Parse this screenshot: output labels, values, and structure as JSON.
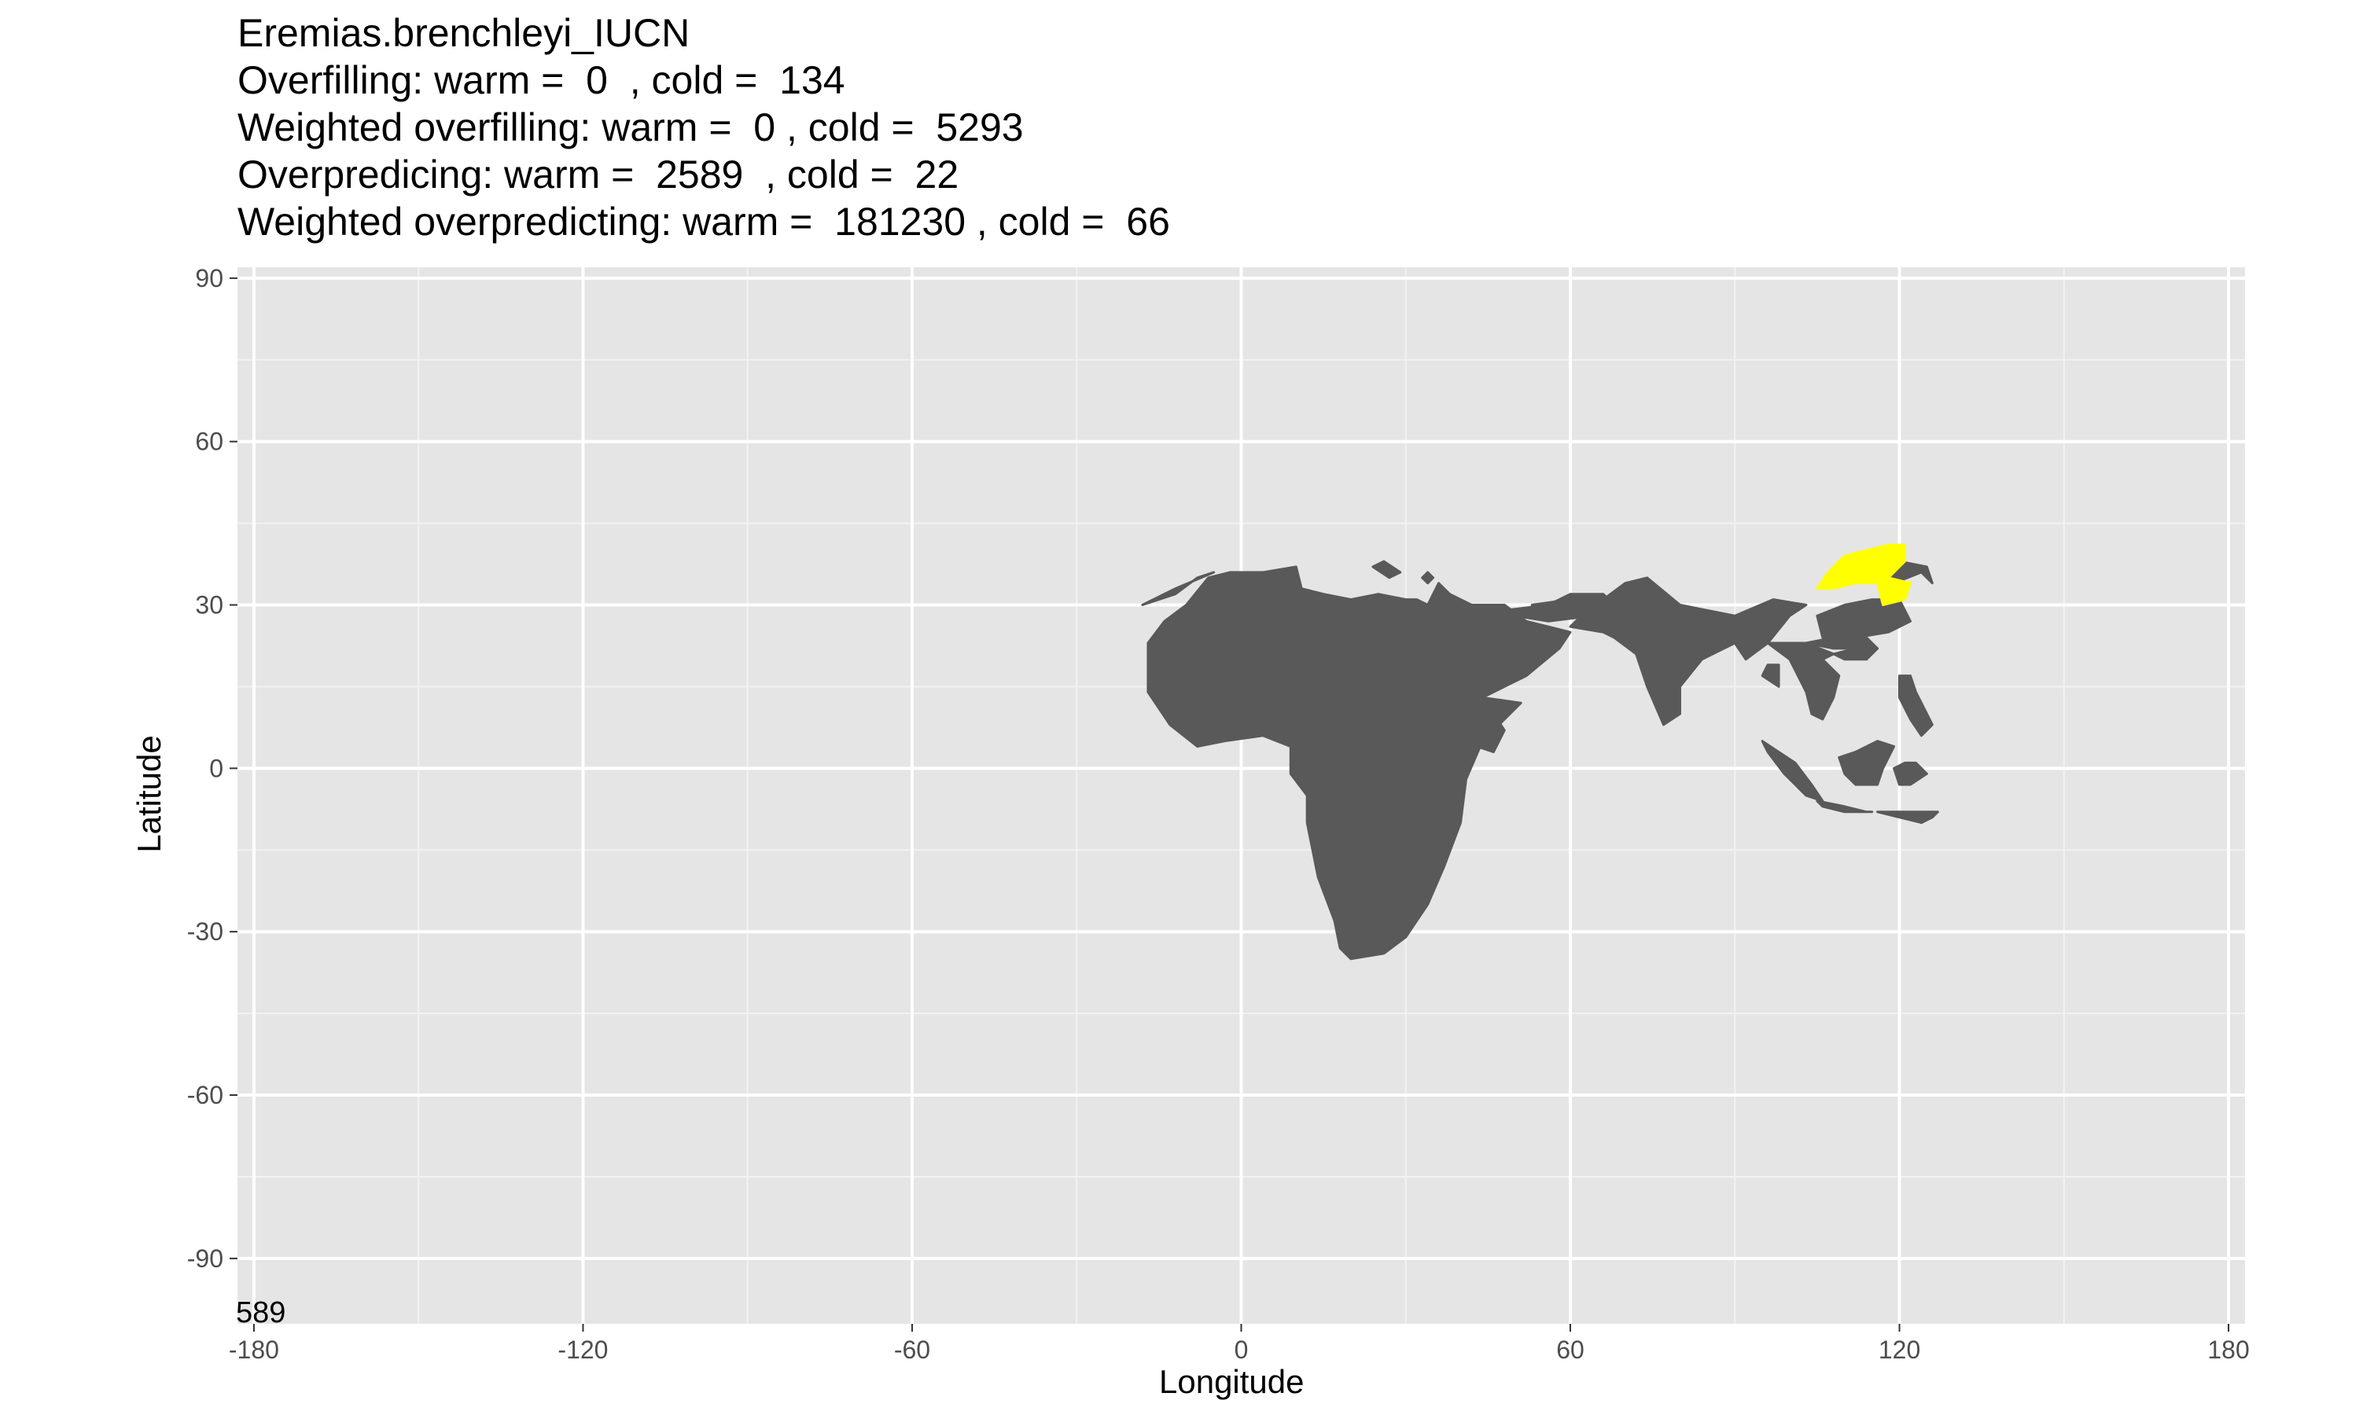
{
  "title_lines": [
    "Eremias.brenchleyi_IUCN",
    "Overfilling: warm =  0  , cold =  134",
    "Weighted overfilling: warm =  0 , cold =  5293",
    "Overpredicing: warm =  2589  , cold =  22",
    "Weighted overpredicting: warm =  181230 , cold =  66"
  ],
  "corner_label": "589",
  "chart_data": {
    "type": "map",
    "xlabel": "Longitude",
    "ylabel": "Latitude",
    "xlim": [
      -183,
      183
    ],
    "ylim": [
      -102,
      92
    ],
    "x_ticks": [
      -180,
      -120,
      -60,
      0,
      60,
      120,
      180
    ],
    "y_ticks": [
      90,
      60,
      30,
      0,
      -30,
      -60,
      -90
    ],
    "grid": true,
    "panel_color": "#e5e5e5",
    "layers": [
      {
        "role": "predicted range",
        "color": "#595959",
        "polygons": [
          [
            [
              -17,
              23
            ],
            [
              -14,
              27
            ],
            [
              -10,
              30
            ],
            [
              -6,
              35
            ],
            [
              -2,
              36
            ],
            [
              4,
              36
            ],
            [
              10,
              37
            ],
            [
              11,
              33
            ],
            [
              15,
              32
            ],
            [
              20,
              31
            ],
            [
              25,
              32
            ],
            [
              30,
              31
            ],
            [
              32,
              31
            ],
            [
              34,
              30
            ],
            [
              36,
              34
            ],
            [
              38,
              32
            ],
            [
              42,
              30
            ],
            [
              48,
              30
            ],
            [
              52,
              27
            ],
            [
              56,
              26
            ],
            [
              60,
              25
            ],
            [
              58,
              22
            ],
            [
              52,
              17
            ],
            [
              48,
              15
            ],
            [
              44,
              13
            ],
            [
              51,
              12
            ],
            [
              44,
              5
            ],
            [
              41,
              -2
            ],
            [
              40,
              -10
            ],
            [
              37,
              -18
            ],
            [
              34,
              -25
            ],
            [
              30,
              -31
            ],
            [
              26,
              -34
            ],
            [
              20,
              -35
            ],
            [
              18,
              -33
            ],
            [
              17,
              -28
            ],
            [
              14,
              -20
            ],
            [
              12,
              -10
            ],
            [
              12,
              -5
            ],
            [
              9,
              -1
            ],
            [
              9,
              4
            ],
            [
              4,
              6
            ],
            [
              -3,
              5
            ],
            [
              -8,
              4
            ],
            [
              -13,
              8
            ],
            [
              -17,
              14
            ],
            [
              -17,
              18
            ]
          ],
          [
            [
              -18,
              30
            ],
            [
              -12,
              32
            ],
            [
              -8,
              35
            ],
            [
              -5,
              36
            ],
            [
              -12,
              33
            ]
          ],
          [
            [
              60,
              26
            ],
            [
              66,
              25
            ],
            [
              68,
              24
            ],
            [
              72,
              21
            ],
            [
              74,
              15
            ],
            [
              77,
              8
            ],
            [
              80,
              10
            ],
            [
              80,
              15
            ],
            [
              84,
              20
            ],
            [
              88,
              22
            ],
            [
              90,
              23
            ],
            [
              92,
              20
            ],
            [
              96,
              23
            ],
            [
              100,
              28
            ],
            [
              103,
              30
            ],
            [
              97,
              31
            ],
            [
              90,
              28
            ],
            [
              80,
              30
            ],
            [
              74,
              35
            ],
            [
              70,
              34
            ],
            [
              66,
              31
            ],
            [
              62,
              28
            ]
          ],
          [
            [
              48,
              29
            ],
            [
              56,
              30
            ],
            [
              60,
              32
            ],
            [
              66,
              32
            ],
            [
              68,
              30
            ],
            [
              64,
              28
            ],
            [
              56,
              27
            ],
            [
              50,
              28
            ]
          ],
          [
            [
              53,
              30
            ],
            [
              60,
              31
            ],
            [
              65,
              31
            ],
            [
              62,
              29
            ],
            [
              56,
              29
            ]
          ],
          [
            [
              96,
              23
            ],
            [
              100,
              20
            ],
            [
              103,
              14
            ],
            [
              104,
              10
            ],
            [
              106,
              9
            ],
            [
              108,
              13
            ],
            [
              109,
              17
            ],
            [
              106,
              20
            ],
            [
              108,
              21
            ],
            [
              103,
              23
            ]
          ],
          [
            [
              108,
              21
            ],
            [
              112,
              22
            ],
            [
              116,
              22
            ],
            [
              114,
              20
            ],
            [
              110,
              20
            ]
          ],
          [
            [
              105,
              28
            ],
            [
              110,
              30
            ],
            [
              115,
              31
            ],
            [
              120,
              31
            ],
            [
              122,
              27
            ],
            [
              118,
              25
            ],
            [
              112,
              24
            ],
            [
              106,
              24
            ]
          ],
          [
            [
              103,
              23
            ],
            [
              108,
              24
            ],
            [
              114,
              24
            ],
            [
              116,
              22
            ],
            [
              108,
              22
            ]
          ],
          [
            [
              95,
              5
            ],
            [
              98,
              3
            ],
            [
              101,
              1
            ],
            [
              104,
              -3
            ],
            [
              106,
              -6
            ],
            [
              103,
              -5
            ],
            [
              99,
              -1
            ],
            [
              96,
              3
            ]
          ],
          [
            [
              105,
              -6
            ],
            [
              110,
              -7
            ],
            [
              114,
              -8
            ],
            [
              115,
              -8
            ],
            [
              110,
              -8
            ],
            [
              106,
              -7
            ]
          ],
          [
            [
              109,
              2
            ],
            [
              112,
              3
            ],
            [
              116,
              5
            ],
            [
              119,
              4
            ],
            [
              117,
              0
            ],
            [
              116,
              -3
            ],
            [
              112,
              -3
            ],
            [
              110,
              -1
            ]
          ],
          [
            [
              116,
              -8
            ],
            [
              120,
              -9
            ],
            [
              124,
              -10
            ],
            [
              126,
              -9
            ],
            [
              127,
              -8
            ],
            [
              122,
              -8
            ]
          ],
          [
            [
              119,
              0
            ],
            [
              121,
              1
            ],
            [
              123,
              1
            ],
            [
              125,
              -1
            ],
            [
              122,
              -3
            ],
            [
              120,
              -3
            ]
          ],
          [
            [
              120,
              17
            ],
            [
              122,
              17
            ],
            [
              123,
              14
            ],
            [
              124,
              12
            ],
            [
              126,
              8
            ],
            [
              124,
              6
            ],
            [
              122,
              9
            ],
            [
              120,
              13
            ]
          ],
          [
            [
              115,
              37
            ],
            [
              119,
              34
            ],
            [
              124,
              36
            ],
            [
              126,
              34
            ],
            [
              125,
              37
            ],
            [
              120,
              38
            ]
          ],
          [
            [
              95,
              17
            ],
            [
              98,
              15
            ],
            [
              98,
              19
            ],
            [
              96,
              19
            ]
          ],
          [
            [
              42,
              8
            ],
            [
              46,
              10
            ],
            [
              48,
              7
            ],
            [
              46,
              3
            ],
            [
              43,
              4
            ]
          ],
          [
            [
              24,
              37
            ],
            [
              27,
              35
            ],
            [
              29,
              36
            ],
            [
              26,
              38
            ]
          ],
          [
            [
              33,
              35
            ],
            [
              34,
              34
            ],
            [
              35,
              35
            ],
            [
              34,
              36
            ]
          ]
        ]
      },
      {
        "role": "overpredicted (cold)",
        "color": "#ffff00",
        "polygons": [
          [
            [
              105,
              33
            ],
            [
              107,
              36
            ],
            [
              110,
              39
            ],
            [
              114,
              40
            ],
            [
              118,
              41
            ],
            [
              121,
              41
            ],
            [
              121,
              38
            ],
            [
              118,
              35
            ],
            [
              122,
              34
            ],
            [
              121,
              31
            ],
            [
              117,
              30
            ],
            [
              116,
              34
            ],
            [
              112,
              34
            ],
            [
              108,
              33
            ]
          ]
        ]
      }
    ]
  }
}
